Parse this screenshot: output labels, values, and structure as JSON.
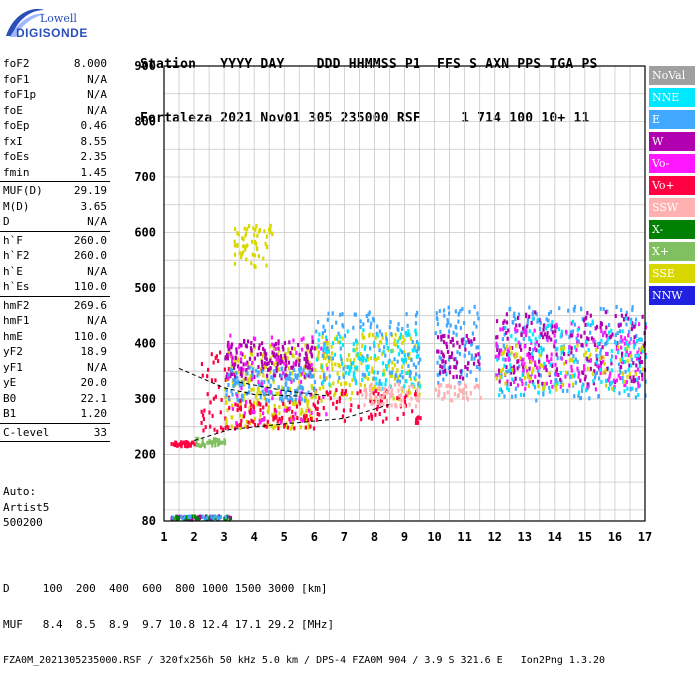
{
  "logo": {
    "line1": "Lowell",
    "line2": "DIGISONDE"
  },
  "header": {
    "labels": "Station   YYYY DAY    DDD HHMMSS P1  FFS S AXN PPS IGA PS",
    "values": "Fortaleza 2021 Nov01 305 235000 RSF     1 714 100 10+ 11"
  },
  "params": {
    "group1": [
      {
        "label": "foF2",
        "value": "8.000"
      },
      {
        "label": "foF1",
        "value": "N/A"
      },
      {
        "label": "foF1p",
        "value": "N/A"
      },
      {
        "label": "foE",
        "value": "N/A"
      },
      {
        "label": "foEp",
        "value": "0.46"
      },
      {
        "label": "fxI",
        "value": "8.55"
      },
      {
        "label": "foEs",
        "value": "2.35"
      },
      {
        "label": "fmin",
        "value": "1.45"
      }
    ],
    "group2": [
      {
        "label": "MUF(D)",
        "value": "29.19"
      },
      {
        "label": "M(D)",
        "value": "3.65"
      },
      {
        "label": "D",
        "value": "N/A"
      }
    ],
    "group3": [
      {
        "label": "h`F",
        "value": "260.0"
      },
      {
        "label": "h`F2",
        "value": "260.0"
      },
      {
        "label": "h`E",
        "value": "N/A"
      },
      {
        "label": "h`Es",
        "value": "110.0"
      }
    ],
    "group4": [
      {
        "label": "hmF2",
        "value": "269.6"
      },
      {
        "label": "hmF1",
        "value": "N/A"
      },
      {
        "label": "hmE",
        "value": "110.0"
      },
      {
        "label": "yF2",
        "value": "18.9"
      },
      {
        "label": "yF1",
        "value": "N/A"
      },
      {
        "label": "yE",
        "value": "20.0"
      },
      {
        "label": "B0",
        "value": "22.1"
      },
      {
        "label": "B1",
        "value": "1.20"
      }
    ],
    "group5": [
      {
        "label": "C-level",
        "value": "33"
      }
    ]
  },
  "auto": {
    "line1": "Auto:",
    "line2": "Artist5",
    "line3": "500200"
  },
  "legend": [
    {
      "label": "NoVal",
      "color": "#a0a0a0"
    },
    {
      "label": "NNE",
      "color": "#00e8ff"
    },
    {
      "label": "E",
      "color": "#40a8ff"
    },
    {
      "label": "W",
      "color": "#b000b0"
    },
    {
      "label": "Vo-",
      "color": "#ff18ff"
    },
    {
      "label": "Vo+",
      "color": "#ff0040"
    },
    {
      "label": "SSW",
      "color": "#ffb0b0"
    },
    {
      "label": "X-",
      "color": "#008000"
    },
    {
      "label": "X+",
      "color": "#80c060"
    },
    {
      "label": "SSE",
      "color": "#d8d800"
    },
    {
      "label": "NNW",
      "color": "#2020e0"
    }
  ],
  "footer": {
    "line1": "D     100  200  400  600  800 1000 1500 3000 [km]",
    "line2": "MUF   8.4  8.5  8.9  9.7 10.8 12.4 17.1 29.2 [MHz]",
    "line3": "FZA0M_2021305235000.RSF / 320fx256h 50 kHz 5.0 km / DPS-4 FZA0M 904 / 3.9 S 321.6 E   Ion2Png 1.3.20"
  },
  "chart_data": {
    "type": "scatter",
    "title": "",
    "xlabel": "",
    "ylabel": "",
    "xlim": [
      1,
      17
    ],
    "ylim": [
      80,
      900
    ],
    "x_ticks": [
      "1",
      "2",
      "3",
      "4",
      "5",
      "6",
      "7",
      "8",
      "9",
      "10",
      "11",
      "12",
      "13",
      "14",
      "15",
      "16",
      "17"
    ],
    "y_ticks": [
      "80",
      "200",
      "300",
      "400",
      "500",
      "600",
      "700",
      "800",
      "900"
    ],
    "y_tick_values": [
      80,
      200,
      300,
      400,
      500,
      600,
      700,
      800,
      900
    ],
    "grid": true,
    "clusters": [
      {
        "x": [
          1.2,
          2.0
        ],
        "y": [
          218,
          226
        ],
        "color": "#ff0040",
        "density": 40
      },
      {
        "x": [
          1.2,
          3.2
        ],
        "y": [
          86,
          92
        ],
        "color": "#b000b0",
        "density": 40
      },
      {
        "x": [
          1.2,
          3.2
        ],
        "y": [
          86,
          92
        ],
        "color": "#008000",
        "density": 30
      },
      {
        "x": [
          1.2,
          3.2
        ],
        "y": [
          86,
          92
        ],
        "color": "#40a8ff",
        "density": 20
      },
      {
        "x": [
          2.0,
          3.0
        ],
        "y": [
          218,
          232
        ],
        "color": "#80c060",
        "density": 40
      },
      {
        "x": [
          2.2,
          3.2
        ],
        "y": [
          240,
          390
        ],
        "color": "#ff0040",
        "density": 40
      },
      {
        "x": [
          3.0,
          6.0
        ],
        "y": [
          250,
          400
        ],
        "color": "#d8d800",
        "density": 220
      },
      {
        "x": [
          3.0,
          6.0
        ],
        "y": [
          340,
          410
        ],
        "color": "#b000b0",
        "density": 160
      },
      {
        "x": [
          3.0,
          6.0
        ],
        "y": [
          300,
          360
        ],
        "color": "#40a8ff",
        "density": 130
      },
      {
        "x": [
          3.0,
          6.0
        ],
        "y": [
          250,
          300
        ],
        "color": "#ff0040",
        "density": 80
      },
      {
        "x": [
          3.0,
          6.5
        ],
        "y": [
          260,
          420
        ],
        "color": "#ff18ff",
        "density": 80
      },
      {
        "x": [
          3.3,
          4.6
        ],
        "y": [
          540,
          620
        ],
        "color": "#d8d800",
        "density": 60
      },
      {
        "x": [
          6.0,
          9.5
        ],
        "y": [
          300,
          420
        ],
        "color": "#d8d800",
        "density": 180
      },
      {
        "x": [
          6.0,
          9.5
        ],
        "y": [
          330,
          460
        ],
        "color": "#40a8ff",
        "density": 120
      },
      {
        "x": [
          6.0,
          9.5
        ],
        "y": [
          320,
          430
        ],
        "color": "#00e8ff",
        "density": 100
      },
      {
        "x": [
          6.0,
          9.5
        ],
        "y": [
          260,
          320
        ],
        "color": "#ff0040",
        "density": 80
      },
      {
        "x": [
          7.5,
          9.5
        ],
        "y": [
          290,
          330
        ],
        "color": "#ffb0b0",
        "density": 60
      },
      {
        "x": [
          10.0,
          11.5
        ],
        "y": [
          330,
          470
        ],
        "color": "#40a8ff",
        "density": 80
      },
      {
        "x": [
          10.0,
          11.5
        ],
        "y": [
          340,
          420
        ],
        "color": "#b000b0",
        "density": 60
      },
      {
        "x": [
          10.0,
          11.5
        ],
        "y": [
          300,
          330
        ],
        "color": "#ffb0b0",
        "density": 40
      },
      {
        "x": [
          12.0,
          17.0
        ],
        "y": [
          300,
          470
        ],
        "color": "#40a8ff",
        "density": 200
      },
      {
        "x": [
          12.0,
          17.0
        ],
        "y": [
          330,
          460
        ],
        "color": "#b000b0",
        "density": 200
      },
      {
        "x": [
          12.0,
          17.0
        ],
        "y": [
          320,
          440
        ],
        "color": "#ff18ff",
        "density": 150
      },
      {
        "x": [
          12.0,
          17.0
        ],
        "y": [
          310,
          450
        ],
        "color": "#00e8ff",
        "density": 120
      },
      {
        "x": [
          12.0,
          17.0
        ],
        "y": [
          320,
          400
        ],
        "color": "#d8d800",
        "density": 80
      }
    ],
    "trace_lines": [
      {
        "points": [
          [
            2.0,
            225
          ],
          [
            3.2,
            245
          ],
          [
            5.0,
            255
          ],
          [
            7.0,
            265
          ],
          [
            8.5,
            290
          ]
        ],
        "color": "#000000",
        "dash": true
      },
      {
        "points": [
          [
            1.5,
            355
          ],
          [
            3.0,
            320
          ],
          [
            4.0,
            308
          ],
          [
            5.5,
            305
          ]
        ],
        "color": "#000000",
        "dash": true
      },
      {
        "points": [
          [
            3.5,
            330
          ],
          [
            5.0,
            315
          ],
          [
            6.5,
            305
          ]
        ],
        "color": "#000000",
        "dash": true
      }
    ]
  }
}
